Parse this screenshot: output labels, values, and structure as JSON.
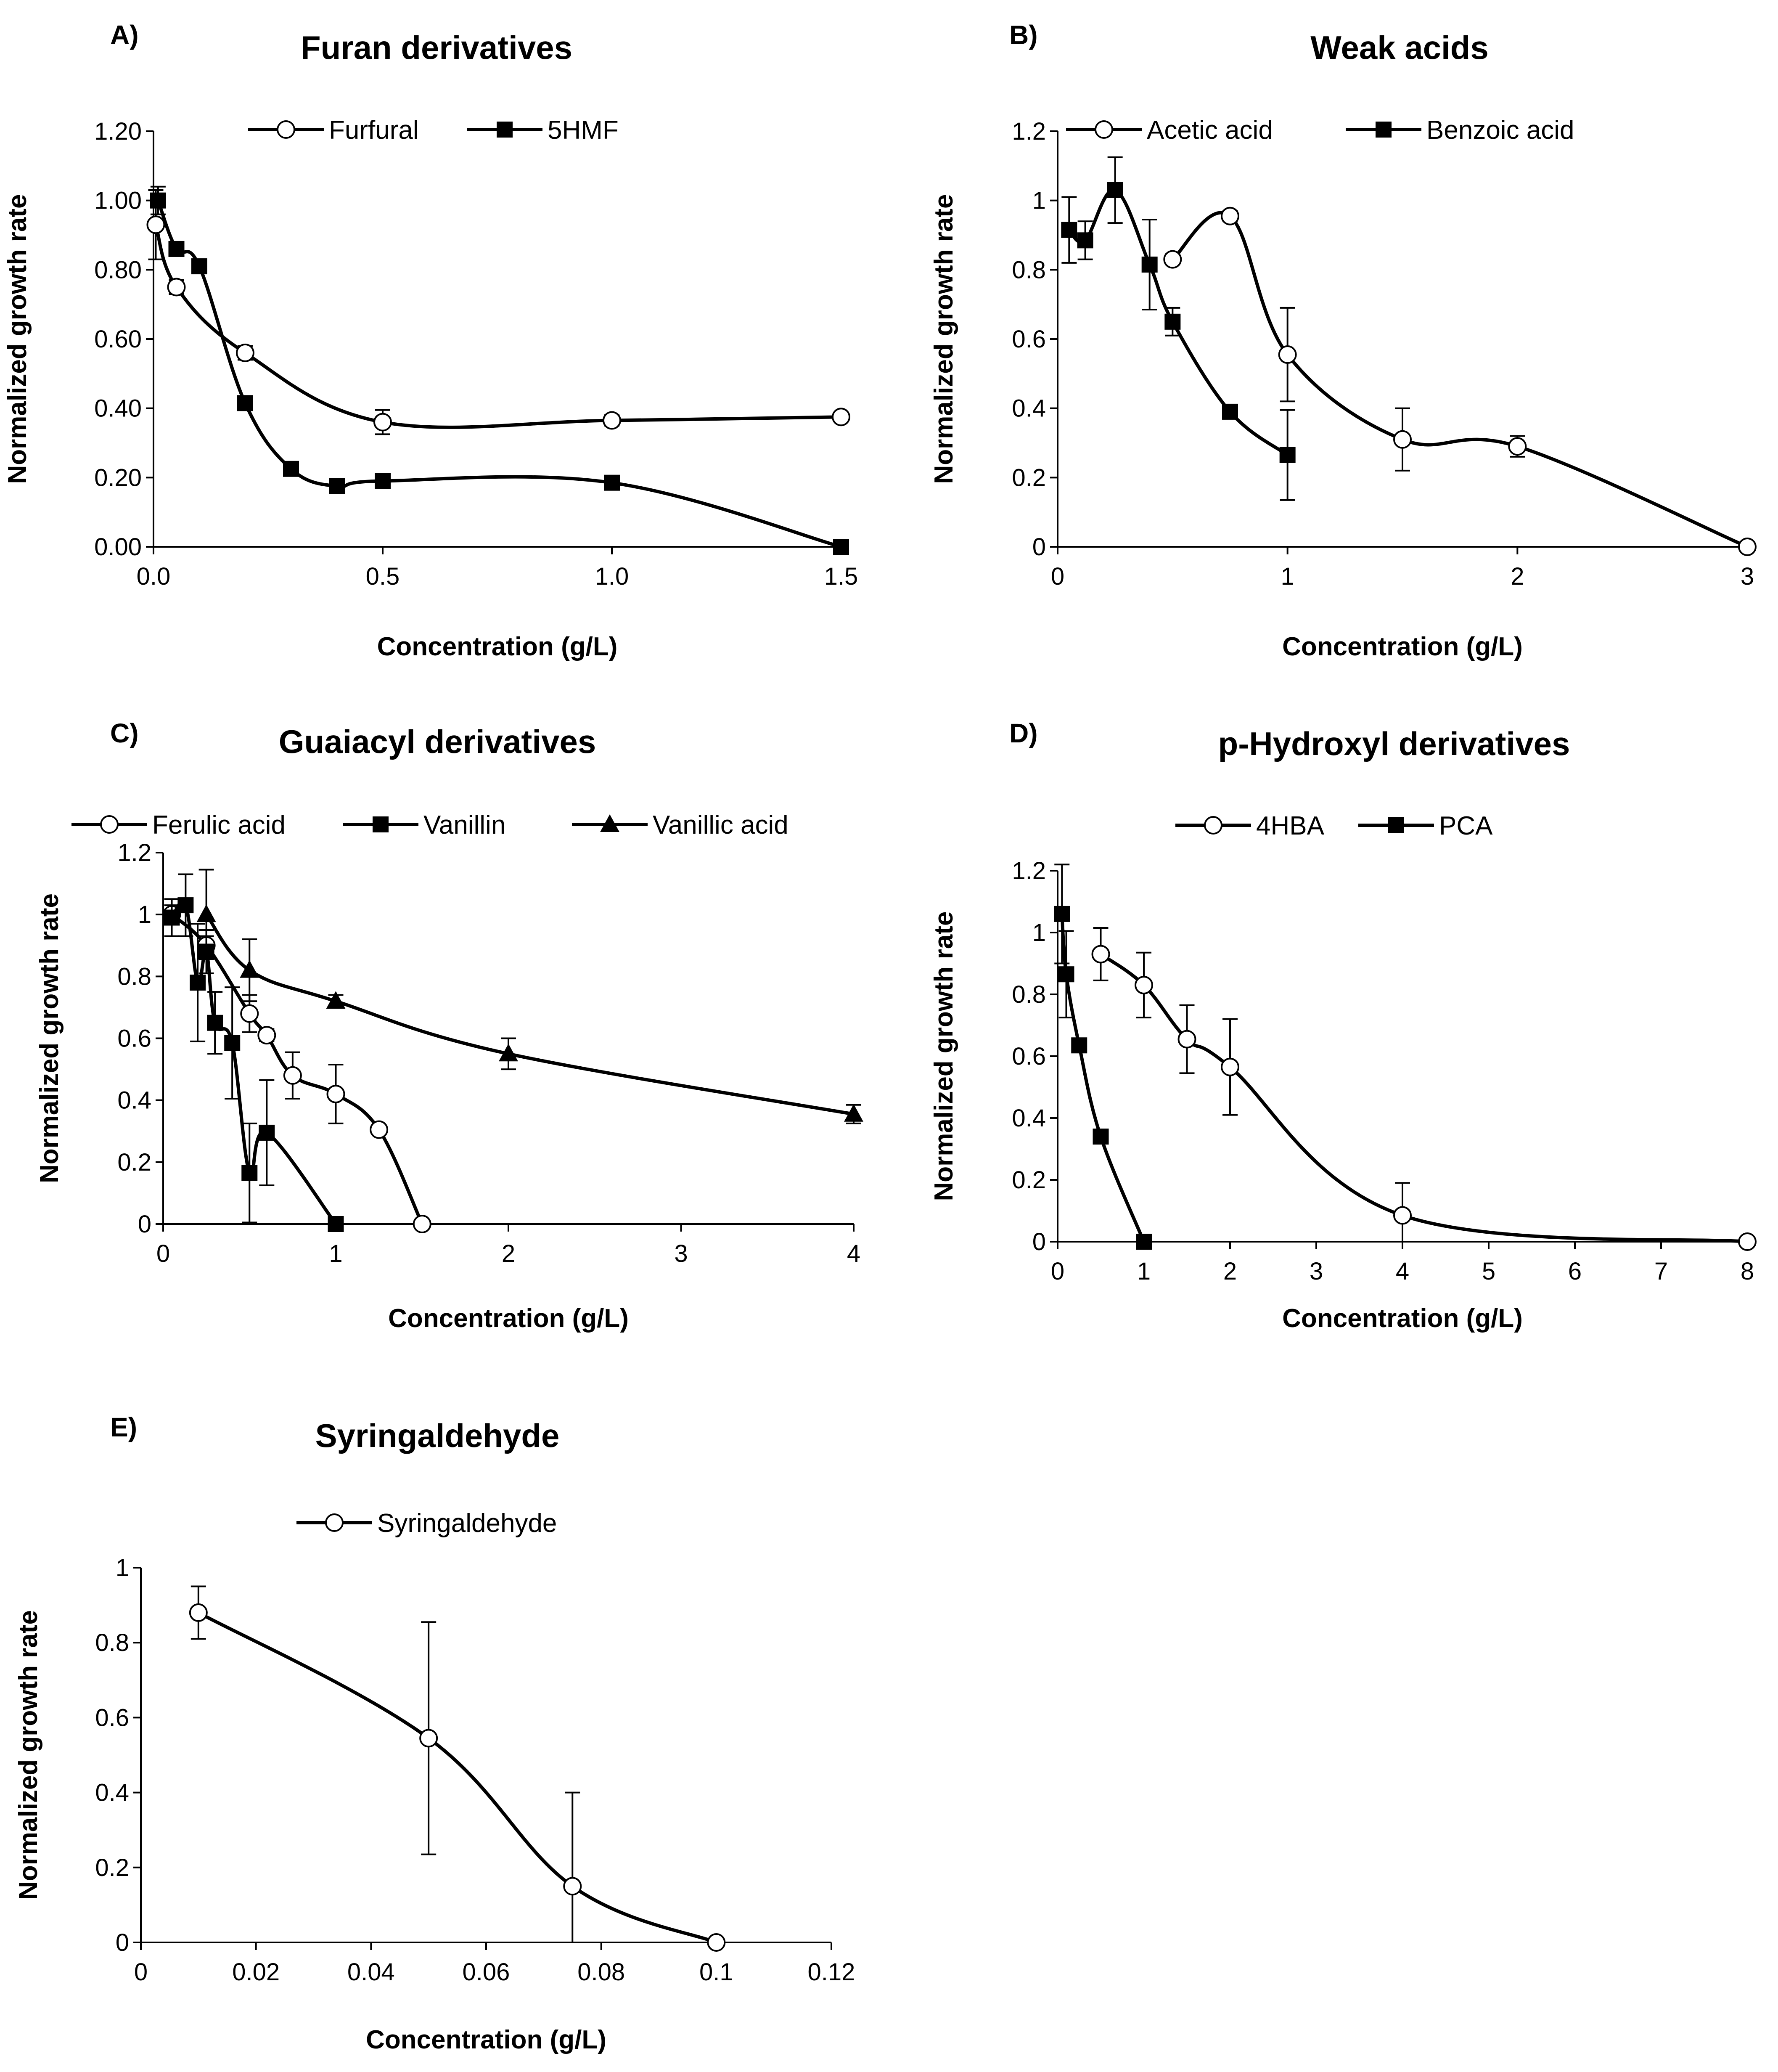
{
  "chart_data": [
    {
      "id": "A",
      "type": "line",
      "panel_label": "A)",
      "title": "Furan derivatives",
      "xlabel": "Concentration (g/L)",
      "ylabel": "Normalized growth rate",
      "xlim": [
        0,
        1.5
      ],
      "ylim": [
        0,
        1.2
      ],
      "xticks": [
        "0.0",
        "0.5",
        "1.0",
        "1.5"
      ],
      "yticks": [
        "0.00",
        "0.20",
        "0.40",
        "0.60",
        "0.80",
        "1.00",
        "1.20"
      ],
      "series": [
        {
          "name": "Furfural",
          "marker": "circle",
          "x": [
            0.005,
            0.05,
            0.2,
            0.5,
            1.0,
            1.5
          ],
          "y": [
            0.93,
            0.75,
            0.56,
            0.36,
            0.365,
            0.375
          ],
          "err": [
            0.1,
            0.02,
            0.02,
            0.035,
            0.015,
            0.01
          ]
        },
        {
          "name": "5HMF",
          "marker": "square",
          "x": [
            0.01,
            0.05,
            0.1,
            0.2,
            0.3,
            0.4,
            0.5,
            1.0,
            1.5
          ],
          "y": [
            1.0,
            0.86,
            0.81,
            0.415,
            0.225,
            0.175,
            0.19,
            0.185,
            0.0
          ],
          "err": [
            0.04,
            0.01,
            0.01,
            0.01,
            0.01,
            0.01,
            0.01,
            0.01,
            0.0
          ]
        }
      ]
    },
    {
      "id": "B",
      "type": "line",
      "panel_label": "B)",
      "title": "Weak acids",
      "xlabel": "Concentration (g/L)",
      "ylabel": "Normalized growth rate",
      "xlim": [
        0,
        3
      ],
      "ylim": [
        0,
        1.2
      ],
      "xticks": [
        "0",
        "1",
        "2",
        "3"
      ],
      "yticks": [
        "0",
        "0.2",
        "0.4",
        "0.6",
        "0.8",
        "1",
        "1.2"
      ],
      "series": [
        {
          "name": "Acetic acid",
          "marker": "circle",
          "x": [
            0.5,
            0.75,
            1.0,
            1.5,
            2.0,
            3.0
          ],
          "y": [
            0.83,
            0.955,
            0.555,
            0.31,
            0.29,
            0.0
          ],
          "err": [
            0.015,
            0.015,
            0.135,
            0.09,
            0.03,
            0.0
          ]
        },
        {
          "name": "Benzoic acid",
          "marker": "square",
          "x": [
            0.05,
            0.12,
            0.25,
            0.4,
            0.5,
            0.75,
            1.0
          ],
          "y": [
            0.915,
            0.885,
            1.03,
            0.815,
            0.65,
            0.39,
            0.265
          ],
          "err": [
            0.095,
            0.055,
            0.095,
            0.13,
            0.04,
            0.01,
            0.13
          ]
        }
      ]
    },
    {
      "id": "C",
      "type": "line",
      "panel_label": "C)",
      "title": "Guaiacyl derivatives",
      "xlabel": "Concentration (g/L)",
      "ylabel": "Normalized growth rate",
      "xlim": [
        0,
        4
      ],
      "ylim": [
        0,
        1.2
      ],
      "xticks": [
        "0",
        "1",
        "2",
        "3",
        "4"
      ],
      "yticks": [
        "0",
        "0.2",
        "0.4",
        "0.6",
        "0.8",
        "1",
        "1.2"
      ],
      "series": [
        {
          "name": "Ferulic acid",
          "marker": "circle",
          "x": [
            0.05,
            0.25,
            0.5,
            0.6,
            0.75,
            1.0,
            1.25,
            1.5
          ],
          "y": [
            1.0,
            0.9,
            0.68,
            0.61,
            0.48,
            0.42,
            0.305,
            0.0
          ],
          "err": [
            0.03,
            0.03,
            0.06,
            0.02,
            0.075,
            0.095,
            0.01,
            0.0
          ]
        },
        {
          "name": "Vanillin",
          "marker": "square",
          "x": [
            0.05,
            0.13,
            0.2,
            0.25,
            0.3,
            0.4,
            0.5,
            0.6,
            1.0
          ],
          "y": [
            0.99,
            1.03,
            0.78,
            0.88,
            0.65,
            0.585,
            0.165,
            0.295,
            0.0
          ],
          "err": [
            0.06,
            0.1,
            0.19,
            0.07,
            0.1,
            0.18,
            0.16,
            0.17,
            0.0
          ]
        },
        {
          "name": "Vanillic acid",
          "marker": "triangle",
          "x": [
            0.25,
            0.5,
            1.0,
            2.0,
            4.0
          ],
          "y": [
            1.0,
            0.82,
            0.72,
            0.55,
            0.355
          ],
          "err": [
            0.145,
            0.1,
            0.02,
            0.05,
            0.03
          ]
        }
      ]
    },
    {
      "id": "D",
      "type": "line",
      "panel_label": "D)",
      "title": "p-Hydroxyl derivatives",
      "xlabel": "Concentration (g/L)",
      "ylabel": "Normalized growth rate",
      "xlim": [
        0,
        8
      ],
      "ylim": [
        0,
        1.2
      ],
      "xticks": [
        "0",
        "1",
        "2",
        "3",
        "4",
        "5",
        "6",
        "7",
        "8"
      ],
      "yticks": [
        "0",
        "0.2",
        "0.4",
        "0.6",
        "0.8",
        "1",
        "1.2"
      ],
      "series": [
        {
          "name": "4HBA",
          "marker": "circle",
          "x": [
            0.5,
            1.0,
            1.5,
            2.0,
            4.0,
            8.0
          ],
          "y": [
            0.93,
            0.83,
            0.655,
            0.565,
            0.085,
            0.0
          ],
          "err": [
            0.085,
            0.105,
            0.11,
            0.155,
            0.105,
            0.0
          ]
        },
        {
          "name": "PCA",
          "marker": "square",
          "x": [
            0.05,
            0.1,
            0.25,
            0.5,
            1.0
          ],
          "y": [
            1.06,
            0.865,
            0.635,
            0.34,
            0.0
          ],
          "err": [
            0.16,
            0.14,
            0.015,
            0.01,
            0.01
          ]
        }
      ]
    },
    {
      "id": "E",
      "type": "line",
      "panel_label": "E)",
      "title": "Syringaldehyde",
      "xlabel": "Concentration (g/L)",
      "ylabel": "Normalized growth rate",
      "xlim": [
        0,
        0.12
      ],
      "ylim": [
        0,
        1.0
      ],
      "xticks": [
        "0",
        "0.02",
        "0.04",
        "0.06",
        "0.08",
        "0.1",
        "0.12"
      ],
      "yticks": [
        "0",
        "0.2",
        "0.4",
        "0.6",
        "0.8",
        "1"
      ],
      "series": [
        {
          "name": "Syringaldehyde",
          "marker": "circle",
          "x": [
            0.01,
            0.05,
            0.075,
            0.1
          ],
          "y": [
            0.88,
            0.545,
            0.15,
            0.0
          ],
          "err": [
            0.07,
            0.31,
            0.25,
            0.0
          ]
        }
      ]
    }
  ]
}
